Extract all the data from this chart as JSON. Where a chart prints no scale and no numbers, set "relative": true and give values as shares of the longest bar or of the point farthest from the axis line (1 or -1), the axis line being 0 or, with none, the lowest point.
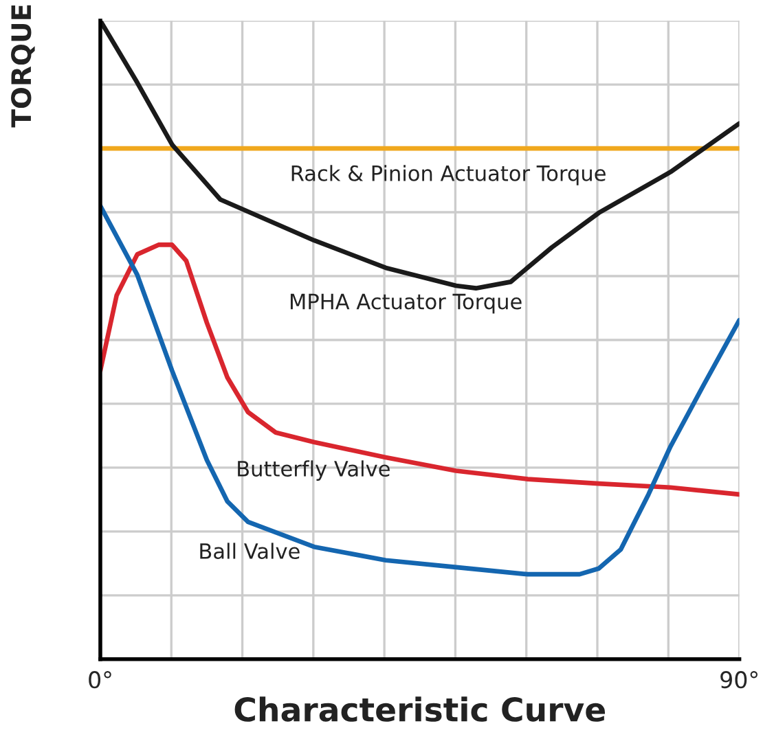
{
  "chart_data": {
    "type": "line",
    "relative": true,
    "xlabel": "Characteristic Curve",
    "ylabel": "TORQUE",
    "xlim": [
      0,
      90
    ],
    "xticks": [
      {
        "value": 0,
        "label": "0°"
      },
      {
        "value": 10,
        "label": null
      },
      {
        "value": 20,
        "label": null
      },
      {
        "value": 30,
        "label": null
      },
      {
        "value": 40,
        "label": null
      },
      {
        "value": 50,
        "label": null
      },
      {
        "value": 60,
        "label": null
      },
      {
        "value": 70,
        "label": null
      },
      {
        "value": 80,
        "label": null
      },
      {
        "value": 90,
        "label": "90°"
      }
    ],
    "grid": true,
    "legend": false,
    "marker": "none",
    "line_style": "solid",
    "series": [
      {
        "name": "Rack & Pinion Actuator Torque",
        "color": "#f0a81e",
        "x": [
          0,
          90
        ],
        "values": [
          0.8,
          0.8
        ]
      },
      {
        "name": "MPHA Actuator Torque",
        "color": "#1a1a1a",
        "x": [
          0,
          5.2,
          10.1,
          16.9,
          30.1,
          40.2,
          50.1,
          52.9,
          57.8,
          63.6,
          70.2,
          80.3,
          90
        ],
        "values": [
          1.0,
          0.903,
          0.806,
          0.72,
          0.656,
          0.613,
          0.585,
          0.581,
          0.591,
          0.645,
          0.699,
          0.763,
          0.839
        ]
      },
      {
        "name": "Butterfly Valve",
        "color": "#d9262e",
        "x": [
          0,
          2.3,
          5.2,
          8.2,
          10.1,
          12.1,
          15.0,
          17.9,
          20.8,
          24.7,
          30.1,
          40.2,
          50.1,
          60.2,
          70.2,
          80.3,
          90
        ],
        "values": [
          0.452,
          0.57,
          0.634,
          0.649,
          0.649,
          0.624,
          0.527,
          0.441,
          0.387,
          0.355,
          0.34,
          0.316,
          0.295,
          0.282,
          0.275,
          0.269,
          0.258
        ]
      },
      {
        "name": "Ball Valve",
        "color": "#1466b0",
        "x": [
          0,
          5.2,
          10.1,
          15.0,
          17.9,
          20.8,
          30.1,
          40.2,
          50.1,
          60.2,
          67.5,
          70.2,
          73.3,
          77.2,
          80.3,
          85.0,
          90
        ],
        "values": [
          0.71,
          0.602,
          0.452,
          0.312,
          0.247,
          0.215,
          0.176,
          0.155,
          0.144,
          0.133,
          0.133,
          0.142,
          0.172,
          0.258,
          0.333,
          0.43,
          0.531
        ]
      }
    ]
  }
}
